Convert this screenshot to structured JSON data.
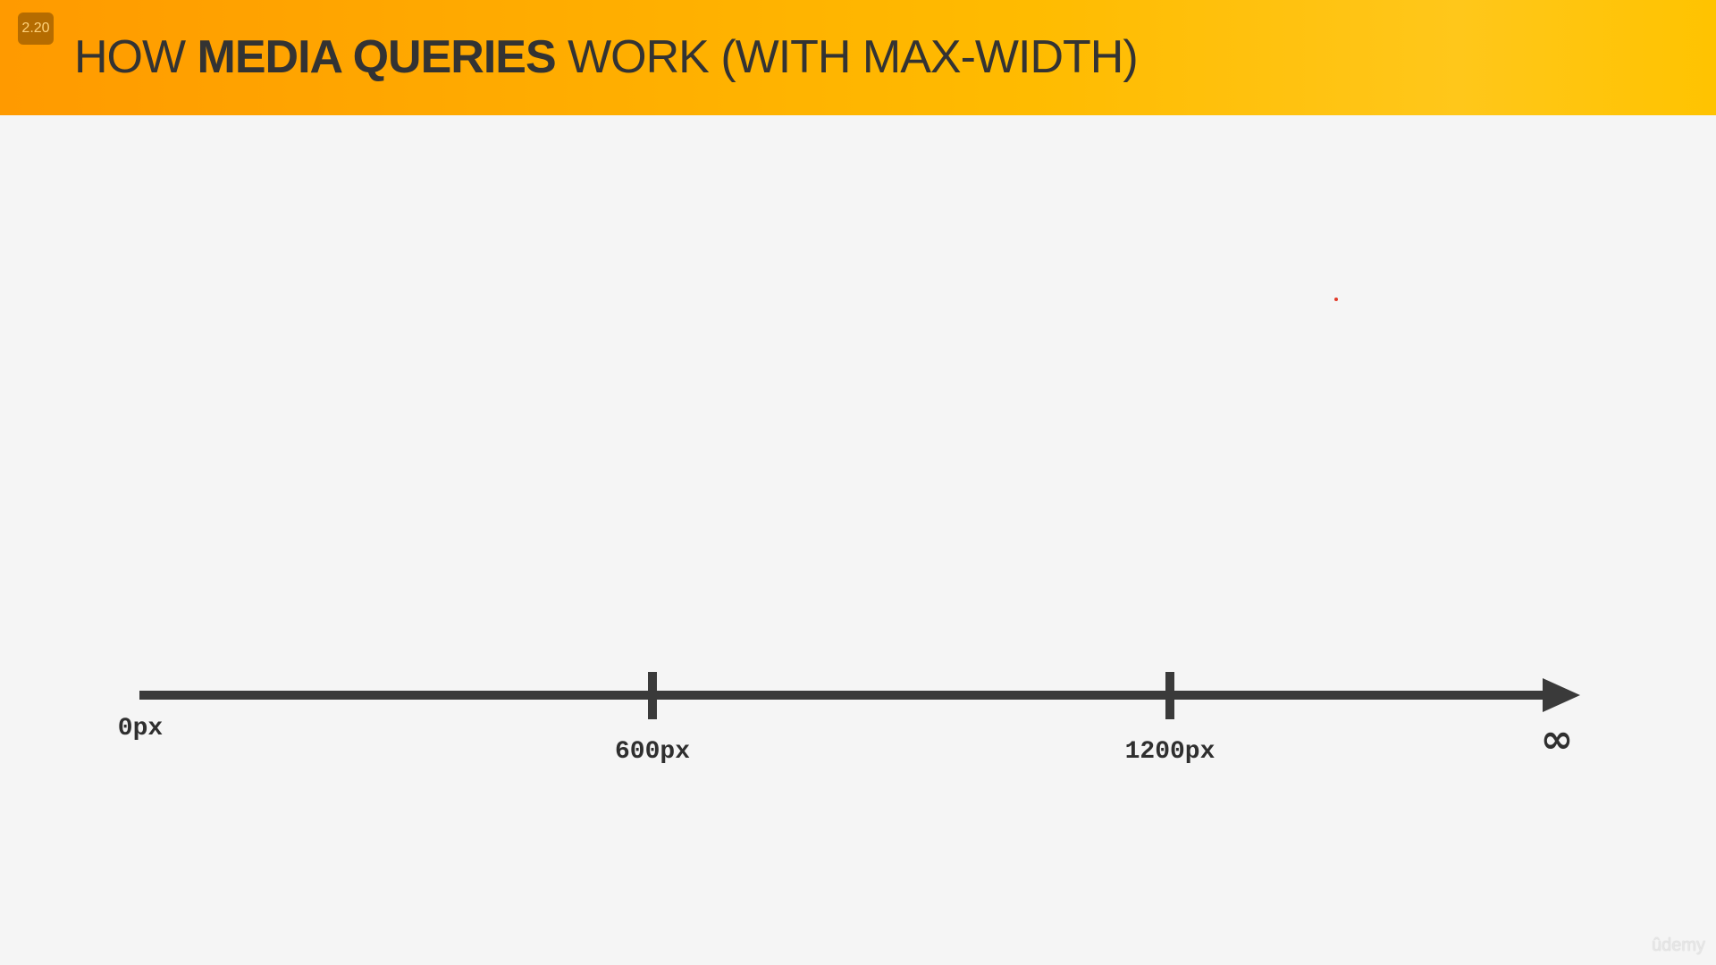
{
  "header": {
    "badge": "2.20",
    "title_prefix": "HOW ",
    "title_bold": "MEDIA QUERIES",
    "title_suffix": " WORK (WITH MAX-WIDTH)"
  },
  "axis": {
    "start_label": "0px",
    "tick_labels": [
      "600px",
      "1200px"
    ],
    "end_label": "∞"
  },
  "colors": {
    "axis": "#3a3a3a",
    "header_start": "#ff9a00",
    "header_end": "#ffc300",
    "cursor_dot": "#e23b2a"
  },
  "watermark": "ûdemy"
}
